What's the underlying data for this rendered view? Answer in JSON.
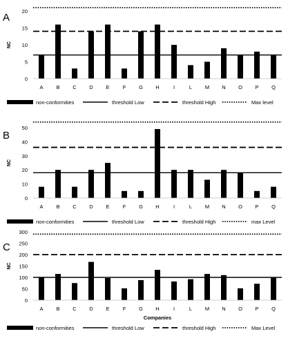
{
  "chart_data": [
    {
      "panel": "A",
      "type": "bar",
      "categories": [
        "A",
        "B",
        "C",
        "D",
        "E",
        "F",
        "G",
        "H",
        "I",
        "L",
        "M",
        "N",
        "O",
        "P",
        "Q"
      ],
      "series": [
        {
          "name": "non-conformities",
          "values": [
            7,
            16,
            3,
            14,
            16,
            3,
            14,
            16,
            10,
            4,
            5,
            9,
            7,
            8,
            7
          ]
        }
      ],
      "thresholds": [
        {
          "name": "threshold Low",
          "value": 7,
          "style": "solid"
        },
        {
          "name": "threshold High",
          "value": 14,
          "style": "dashed"
        },
        {
          "name": "Max level",
          "value": 21,
          "style": "dotted"
        }
      ],
      "ylabel": "NC",
      "xlabel": "",
      "ylim": [
        0,
        20
      ],
      "yticks": [
        0,
        5,
        10,
        15,
        20
      ],
      "legend": "bottom"
    },
    {
      "panel": "B",
      "type": "bar",
      "categories": [
        "A",
        "B",
        "C",
        "D",
        "E",
        "F",
        "G",
        "H",
        "I",
        "L",
        "M",
        "N",
        "O",
        "P",
        "Q"
      ],
      "series": [
        {
          "name": "non-conformities",
          "values": [
            8,
            20,
            8,
            20,
            25,
            5,
            5,
            49,
            20,
            20,
            13,
            20,
            18,
            5,
            8
          ]
        }
      ],
      "thresholds": [
        {
          "name": "threshold Low",
          "value": 18,
          "style": "solid"
        },
        {
          "name": "threshold High",
          "value": 36,
          "style": "dashed"
        },
        {
          "name": "max Level",
          "value": 54,
          "style": "dotted"
        }
      ],
      "ylabel": "NC",
      "xlabel": "",
      "ylim": [
        0,
        50
      ],
      "yticks": [
        0,
        10,
        20,
        30,
        40,
        50
      ],
      "legend": "bottom"
    },
    {
      "panel": "C",
      "type": "bar",
      "categories": [
        "A",
        "B",
        "C",
        "D",
        "E",
        "F",
        "G",
        "H",
        "I",
        "L",
        "M",
        "N",
        "O",
        "P",
        "Q"
      ],
      "series": [
        {
          "name": "non-conformities",
          "values": [
            100,
            115,
            75,
            168,
            97,
            52,
            88,
            133,
            82,
            92,
            115,
            110,
            52,
            72,
            98
          ]
        }
      ],
      "thresholds": [
        {
          "name": "threshold Low",
          "value": 100,
          "style": "solid"
        },
        {
          "name": "threshold High",
          "value": 200,
          "style": "dashed"
        },
        {
          "name": "Max Level",
          "value": 290,
          "style": "dotted"
        }
      ],
      "ylabel": "NC",
      "xlabel": "Companies",
      "ylim": [
        0,
        300
      ],
      "yticks": [
        0,
        50,
        100,
        150,
        200,
        250,
        300
      ],
      "legend": "bottom"
    }
  ]
}
